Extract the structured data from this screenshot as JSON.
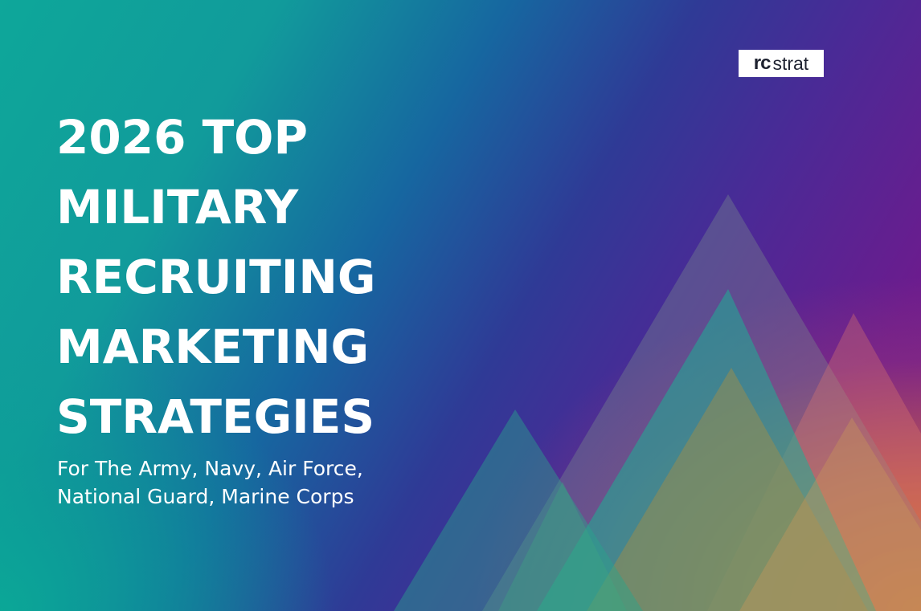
{
  "logo": {
    "part1": "rc",
    "part2": "strat"
  },
  "headline": {
    "lines": [
      "2026 TOP",
      "MILITARY",
      "RECRUITING",
      "MARKETING",
      "STRATEGIES"
    ]
  },
  "subheadline": {
    "lines": [
      "For The Army, Navy, Air Force,",
      "National Guard, Marine Corps"
    ]
  },
  "colors": {
    "teal": "#0ea79a",
    "blue": "#2f3a96",
    "purple": "#761a8a",
    "orange": "#e6821e",
    "text": "#ffffff",
    "logo_bg": "#ffffff",
    "logo_text": "#1e2230"
  }
}
